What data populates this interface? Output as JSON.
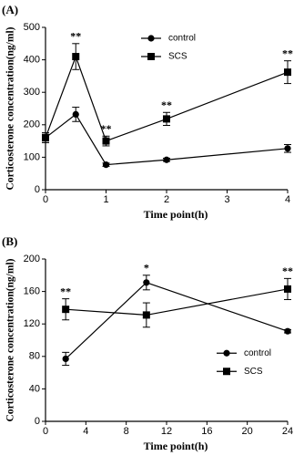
{
  "chart_data": [
    {
      "type": "line",
      "title": "(A)",
      "xlabel": "Time point(h)",
      "ylabel": "Corticosterone concentration(ng/ml)",
      "xlim": [
        0,
        4
      ],
      "xticks": [
        0,
        1,
        2,
        3,
        4
      ],
      "ylim": [
        0,
        500
      ],
      "yticks": [
        0,
        100,
        200,
        300,
        400,
        500
      ],
      "x": [
        0,
        0.5,
        1,
        2,
        4
      ],
      "legend": "upper-center",
      "grid": false,
      "series": [
        {
          "name": "control",
          "color": "#000000",
          "marker": "circle",
          "values": [
            160,
            232,
            77,
            92,
            127
          ],
          "errors": [
            15,
            22,
            5,
            5,
            12
          ]
        },
        {
          "name": "SCS",
          "color": "#000000",
          "marker": "square",
          "values": [
            160,
            410,
            150,
            218,
            362
          ],
          "errors": [
            15,
            40,
            15,
            20,
            35
          ]
        }
      ],
      "annotations": [
        {
          "x": 0.5,
          "text": "**"
        },
        {
          "x": 1,
          "text": "**"
        },
        {
          "x": 2,
          "text": "**"
        },
        {
          "x": 4,
          "text": "**"
        }
      ]
    },
    {
      "type": "line",
      "title": "(B)",
      "xlabel": "Time point(h)",
      "ylabel": "Corticosterone concentration(ng/ml)",
      "xlim": [
        0,
        24
      ],
      "xticks": [
        0,
        4,
        8,
        12,
        16,
        20,
        24
      ],
      "ylim": [
        0,
        200
      ],
      "yticks": [
        0,
        40,
        80,
        120,
        160,
        200
      ],
      "x": [
        2,
        10,
        24
      ],
      "legend": "center-right",
      "grid": false,
      "series": [
        {
          "name": "control",
          "color": "#000000",
          "marker": "circle",
          "values": [
            77,
            171,
            111
          ],
          "errors": [
            8,
            9,
            2
          ]
        },
        {
          "name": "SCS",
          "color": "#000000",
          "marker": "square",
          "values": [
            138,
            131,
            163
          ],
          "errors": [
            13,
            15,
            13
          ]
        }
      ],
      "annotations": [
        {
          "x": 2,
          "text": "**"
        },
        {
          "x": 10,
          "text": "*"
        },
        {
          "x": 24,
          "text": "**"
        }
      ]
    }
  ]
}
